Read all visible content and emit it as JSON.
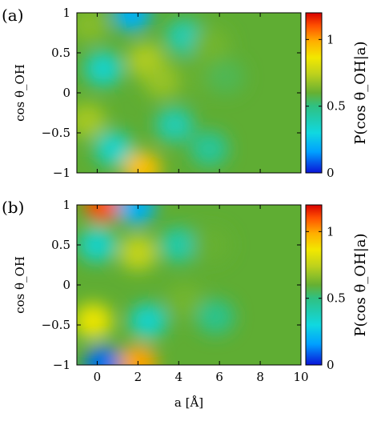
{
  "chart_data": [
    {
      "type": "heatmap",
      "panel_label": "(a)",
      "xlim": [
        -1,
        10
      ],
      "ylim": [
        -1,
        1
      ],
      "x_ticks": [
        0,
        2,
        4,
        6,
        8,
        10
      ],
      "y_ticks": [
        -1,
        -0.5,
        0,
        0.5,
        1
      ],
      "y_tick_labels": [
        "−1",
        "−0.5",
        "0",
        "0.5",
        "1"
      ],
      "xlabel": "",
      "ylabel": "cos θ_OH",
      "colorbar": {
        "label": "P(cos θ_OH|a)",
        "range": [
          0,
          1.2
        ],
        "ticks": [
          0,
          0.5,
          1
        ],
        "tick_labels": [
          "0",
          "0.5",
          "1"
        ]
      },
      "features": [
        {
          "x": -0.4,
          "y": 0.85,
          "value": 0.65
        },
        {
          "x": -0.5,
          "y": -0.35,
          "value": 0.7
        },
        {
          "x": 0.3,
          "y": 0.3,
          "value": 0.35
        },
        {
          "x": 0.8,
          "y": -0.7,
          "value": 0.35
        },
        {
          "x": 1.7,
          "y": 0.98,
          "value": 0.2
        },
        {
          "x": 2.2,
          "y": -0.95,
          "value": 0.95
        },
        {
          "x": 2.4,
          "y": 0.4,
          "value": 0.72
        },
        {
          "x": 3.2,
          "y": 0.15,
          "value": 0.68
        },
        {
          "x": 4.3,
          "y": 0.7,
          "value": 0.4
        },
        {
          "x": 3.8,
          "y": -0.4,
          "value": 0.4
        },
        {
          "x": 4.8,
          "y": 0.2,
          "value": 0.6
        },
        {
          "x": 5.6,
          "y": 0.6,
          "value": 0.62
        },
        {
          "x": 5.5,
          "y": -0.7,
          "value": 0.45
        },
        {
          "x": 6.3,
          "y": 0.2,
          "value": 0.56
        }
      ]
    },
    {
      "type": "heatmap",
      "panel_label": "(b)",
      "xlim": [
        -1,
        10
      ],
      "ylim": [
        -1,
        1
      ],
      "x_ticks": [
        0,
        2,
        4,
        6,
        8,
        10
      ],
      "x_tick_labels": [
        "0",
        "2",
        "4",
        "6",
        "8",
        "10"
      ],
      "y_ticks": [
        -1,
        -0.5,
        0,
        0.5,
        1
      ],
      "y_tick_labels": [
        "−1",
        "−0.5",
        "0",
        "0.5",
        "1"
      ],
      "xlabel": "a [Å]",
      "ylabel": "cos θ_OH",
      "colorbar": {
        "label": "P(cos θ_OH|a)",
        "range": [
          0,
          1.2
        ],
        "ticks": [
          0,
          0.5,
          1
        ],
        "tick_labels": [
          "0",
          "0.5",
          "1"
        ]
      },
      "features": [
        {
          "x": 0.3,
          "y": 1.0,
          "value": 1.1
        },
        {
          "x": 0.3,
          "y": -0.98,
          "value": 0.1
        },
        {
          "x": 0.0,
          "y": 0.5,
          "value": 0.35
        },
        {
          "x": -0.2,
          "y": -0.45,
          "value": 0.85
        },
        {
          "x": 1.9,
          "y": 0.97,
          "value": 0.2
        },
        {
          "x": 2.0,
          "y": -0.97,
          "value": 1.0
        },
        {
          "x": 2.0,
          "y": 0.4,
          "value": 0.75
        },
        {
          "x": 2.5,
          "y": -0.45,
          "value": 0.35
        },
        {
          "x": 4.0,
          "y": 0.5,
          "value": 0.42
        },
        {
          "x": 4.3,
          "y": -0.2,
          "value": 0.62
        },
        {
          "x": 5.6,
          "y": 0.5,
          "value": 0.6
        },
        {
          "x": 5.8,
          "y": -0.4,
          "value": 0.48
        }
      ]
    }
  ]
}
